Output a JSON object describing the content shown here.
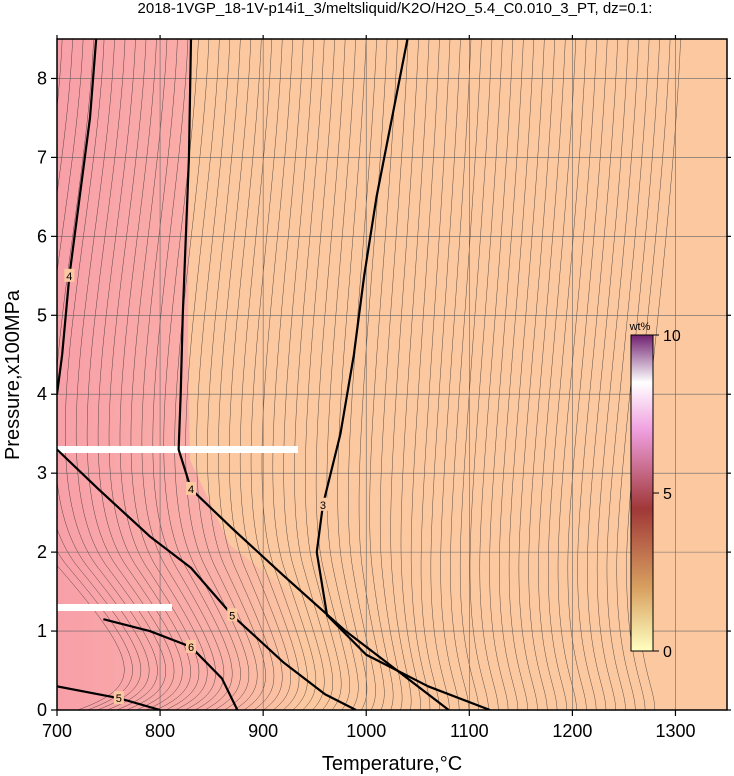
{
  "chart_data": {
    "type": "contour",
    "title": "2018-1VGP_18-1V-p14i1_3/meltsliquid/K2O/H2O_5.4_C0.010_3_PT, dz=0.1:",
    "xlabel": "Temperature,°C",
    "ylabel": "Pressure,x100MPa",
    "xlim": [
      700,
      1350
    ],
    "ylim": [
      0,
      8.5
    ],
    "x_ticks": [
      700,
      800,
      900,
      1000,
      1100,
      1200,
      1300
    ],
    "y_ticks": [
      0,
      1,
      2,
      3,
      4,
      5,
      6,
      7,
      8
    ],
    "grid": true,
    "colorbar": {
      "unit": "wt%",
      "range": [
        0,
        10
      ],
      "ticks": [
        0,
        5,
        10
      ],
      "colors": [
        "#ffffc0",
        "#d8a060",
        "#a03838",
        "#f0a0e0",
        "#ffffff",
        "#702070"
      ]
    },
    "background_color": "#fcc8a0",
    "low_temperature_color": "#f8a0a8",
    "missing_band_color": "#ffffff",
    "labeled_contours": [
      {
        "level": 3,
        "label": "3",
        "points": [
          [
            1040,
            8.5
          ],
          [
            1025,
            7.5
          ],
          [
            1010,
            6.5
          ],
          [
            998,
            5.5
          ],
          [
            988,
            4.5
          ],
          [
            975,
            3.5
          ],
          [
            958,
            2.6
          ],
          [
            952,
            2.0
          ],
          [
            962,
            1.2
          ],
          [
            1000,
            0.7
          ],
          [
            1060,
            0.3
          ],
          [
            1120,
            0.0
          ]
        ]
      },
      {
        "level": 4,
        "label": "4",
        "points": [
          [
            830,
            8.5
          ],
          [
            828,
            7.0
          ],
          [
            825,
            6.0
          ],
          [
            822,
            5.0
          ],
          [
            820,
            4.0
          ],
          [
            818,
            3.3
          ],
          [
            830,
            2.8
          ],
          [
            870,
            2.3
          ],
          [
            920,
            1.7
          ],
          [
            980,
            1.0
          ],
          [
            1040,
            0.4
          ],
          [
            1080,
            0.0
          ]
        ]
      },
      {
        "level": 5,
        "label": "5",
        "points": [
          [
            700,
            3.3
          ],
          [
            740,
            2.8
          ],
          [
            790,
            2.2
          ],
          [
            830,
            1.8
          ],
          [
            870,
            1.2
          ],
          [
            920,
            0.6
          ],
          [
            960,
            0.2
          ],
          [
            990,
            0.0
          ]
        ]
      },
      {
        "level": 6,
        "label": "6",
        "points": [
          [
            745,
            1.15
          ],
          [
            790,
            1.0
          ],
          [
            830,
            0.8
          ],
          [
            860,
            0.4
          ],
          [
            875,
            0.0
          ]
        ]
      },
      {
        "level": 4,
        "label": "4",
        "points": [
          [
            738,
            8.5
          ],
          [
            732,
            7.5
          ],
          [
            722,
            6.5
          ],
          [
            712,
            5.5
          ],
          [
            705,
            4.5
          ],
          [
            700,
            4.0
          ]
        ]
      },
      {
        "level": 5,
        "label": "5",
        "points": [
          [
            700,
            0.3
          ],
          [
            760,
            0.15
          ],
          [
            800,
            0.0
          ]
        ]
      }
    ],
    "thin_contour_count": 60
  }
}
